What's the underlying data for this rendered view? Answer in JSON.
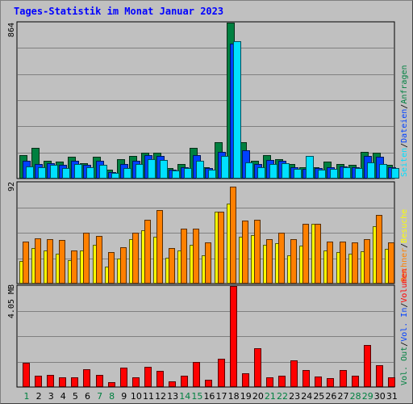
{
  "title": "Tages-Statistik im Monat Januar 2023",
  "colors": {
    "background": "#c0c0c0",
    "plot_bg": "#c0c0c0",
    "grid": "#808080",
    "anfragen": "#008040",
    "dateien": "#0040ff",
    "seiten": "#00e0ff",
    "besuche": "#ffff00",
    "rechner": "#ff8000",
    "volumen": "#ff0000",
    "weekday_label": "#000000",
    "weekend_label": "#008040"
  },
  "chart_data": [
    {
      "type": "bar",
      "categories": [
        "1",
        "2",
        "3",
        "4",
        "5",
        "6",
        "7",
        "8",
        "9",
        "10",
        "11",
        "12",
        "13",
        "14",
        "15",
        "16",
        "17",
        "18",
        "19",
        "20",
        "21",
        "22",
        "23",
        "24",
        "25",
        "26",
        "27",
        "28",
        "29",
        "30",
        "31"
      ],
      "weekend": [
        "1",
        "7",
        "8",
        "14",
        "15",
        "21",
        "22",
        "28",
        "29"
      ],
      "ymax_label": "864",
      "ylim": [
        0,
        864
      ],
      "legend": [
        "Anfragen",
        "Dateien",
        "Seiten"
      ],
      "legend_separator": "/",
      "series": [
        {
          "name": "Anfragen",
          "values": [
            125,
            165,
            95,
            90,
            115,
            80,
            115,
            45,
            105,
            120,
            140,
            140,
            55,
            75,
            165,
            60,
            200,
            864,
            200,
            95,
            125,
            105,
            75,
            60,
            60,
            90,
            75,
            70,
            145,
            140,
            70
          ]
        },
        {
          "name": "Dateien",
          "values": [
            95,
            75,
            80,
            70,
            95,
            70,
            95,
            30,
            75,
            95,
            125,
            120,
            45,
            60,
            125,
            55,
            145,
            745,
            155,
            75,
            100,
            95,
            60,
            50,
            55,
            60,
            65,
            60,
            120,
            115,
            60
          ]
        },
        {
          "name": "Seiten",
          "values": [
            65,
            60,
            70,
            55,
            75,
            60,
            70,
            25,
            55,
            75,
            105,
            100,
            40,
            55,
            95,
            45,
            120,
            760,
            85,
            60,
            75,
            80,
            50,
            120,
            45,
            50,
            60,
            55,
            85,
            75,
            55
          ]
        }
      ]
    },
    {
      "type": "bar",
      "categories": [
        "1",
        "2",
        "3",
        "4",
        "5",
        "6",
        "7",
        "8",
        "9",
        "10",
        "11",
        "12",
        "13",
        "14",
        "15",
        "16",
        "17",
        "18",
        "19",
        "20",
        "21",
        "22",
        "23",
        "24",
        "25",
        "26",
        "27",
        "28",
        "29",
        "30",
        "31"
      ],
      "ymax_label": "92",
      "ylim": [
        0,
        92
      ],
      "legend": [
        "Besuche",
        "Rechner"
      ],
      "legend_separator": "/",
      "series": [
        {
          "name": "Besuche",
          "values": [
            20,
            32,
            30,
            27,
            21,
            30,
            35,
            15,
            22,
            40,
            48,
            42,
            23,
            30,
            35,
            25,
            65,
            73,
            42,
            44,
            35,
            36,
            25,
            34,
            54,
            30,
            28,
            27,
            29,
            52,
            31
          ]
        },
        {
          "name": "Rechner",
          "values": [
            38,
            41,
            40,
            39,
            30,
            46,
            43,
            28,
            33,
            46,
            58,
            67,
            32,
            50,
            50,
            37,
            65,
            88,
            57,
            58,
            40,
            46,
            40,
            54,
            54,
            38,
            38,
            37,
            40,
            62,
            37
          ]
        }
      ]
    },
    {
      "type": "bar",
      "categories": [
        "1",
        "2",
        "3",
        "4",
        "5",
        "6",
        "7",
        "8",
        "9",
        "10",
        "11",
        "12",
        "13",
        "14",
        "15",
        "16",
        "17",
        "18",
        "19",
        "20",
        "21",
        "22",
        "23",
        "24",
        "25",
        "26",
        "27",
        "28",
        "29",
        "30",
        "31"
      ],
      "ymax_label": "4.05 MB",
      "ylim": [
        0,
        4.05
      ],
      "legend": [
        "Volumen",
        "Vol. In",
        "Vol. Out"
      ],
      "legend_separator": "/",
      "series": [
        {
          "name": "Volumen",
          "values": [
            0.95,
            0.42,
            0.47,
            0.36,
            0.35,
            0.7,
            0.47,
            0.15,
            0.76,
            0.36,
            0.8,
            0.62,
            0.18,
            0.43,
            0.97,
            0.27,
            1.11,
            4.05,
            0.52,
            1.52,
            0.36,
            0.43,
            1.05,
            0.65,
            0.4,
            0.32,
            0.65,
            0.42,
            1.66,
            0.86,
            0.35
          ]
        }
      ]
    }
  ]
}
